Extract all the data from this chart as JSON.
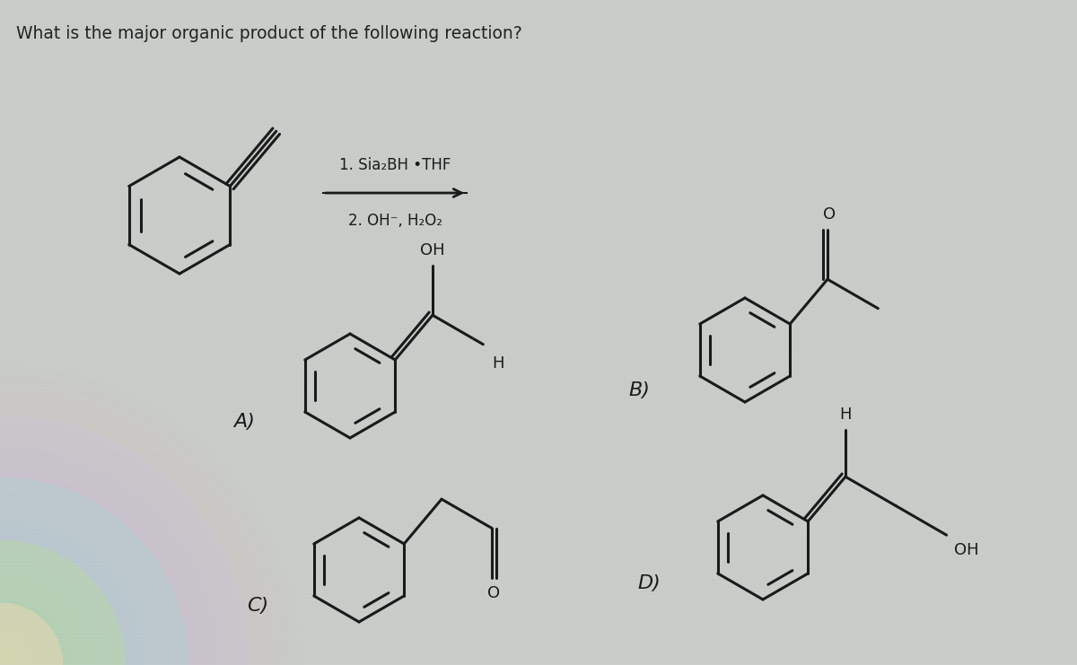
{
  "title": "What is the major organic product of the following reaction?",
  "title_fontsize": 13.5,
  "bg_color": "#c8ccc8",
  "text_color": "#222222",
  "reagent_line1": "1. Sia₂BH •THF",
  "reagent_line2": "2. OH⁻, H₂O₂",
  "label_A": "A)",
  "label_B": "B)",
  "label_C": "C)",
  "label_D": "D)",
  "bond_lw": 2.2,
  "label_fontsize": 16,
  "mol_scale": 1.0
}
